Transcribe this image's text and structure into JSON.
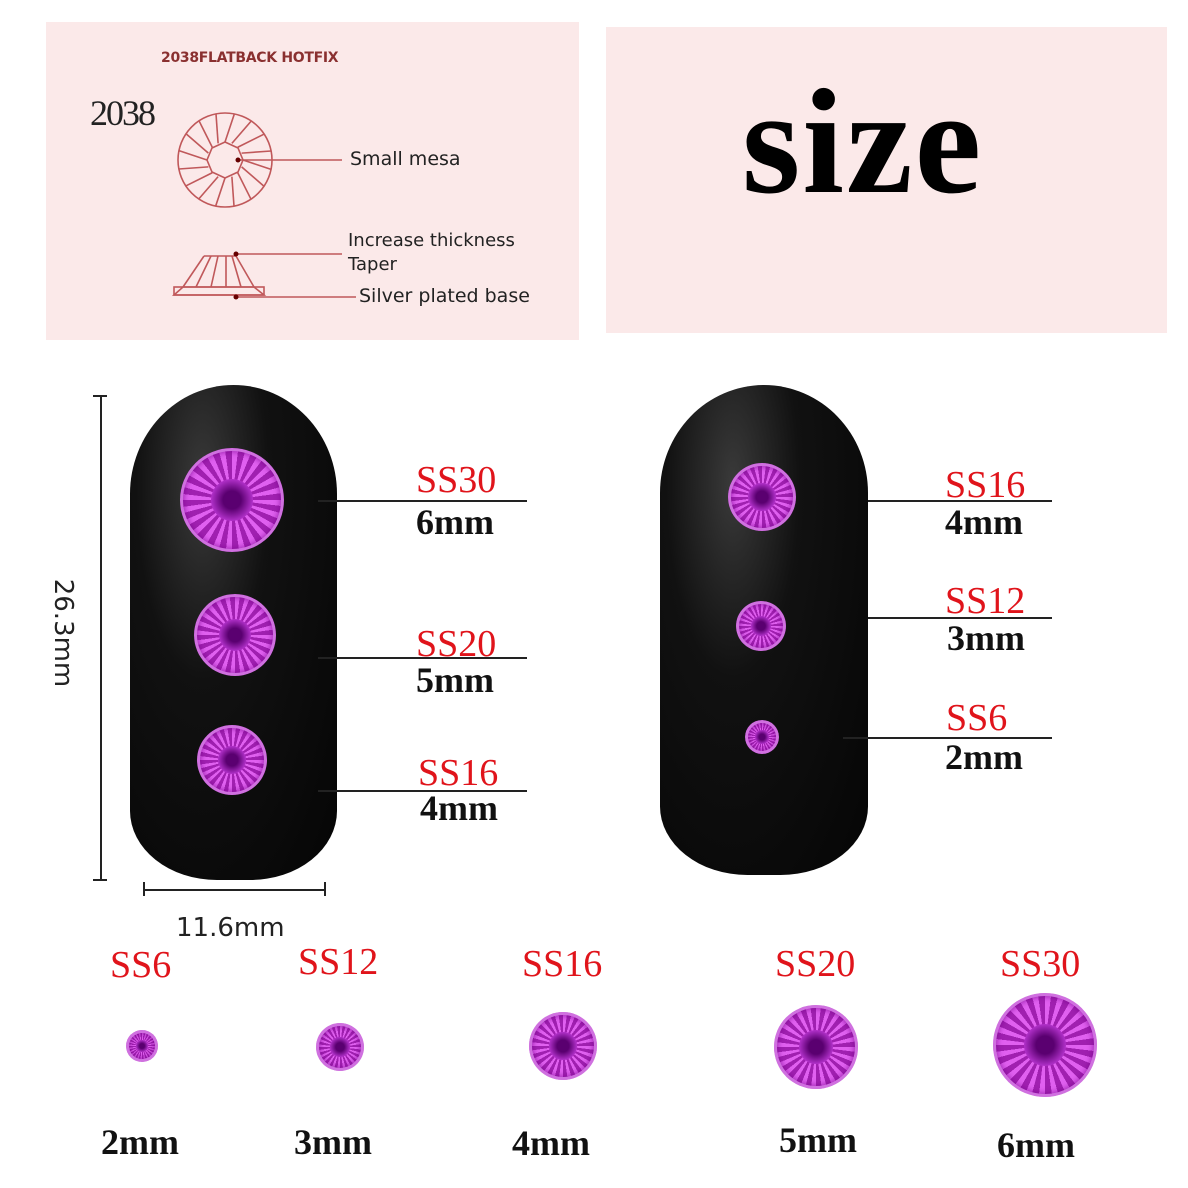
{
  "diagram_panel": {
    "title": "2038FLATBACK HOTFIX",
    "model": "2038",
    "labels": [
      "Small mesa",
      "Increase thickness",
      "Taper",
      "Silver plated base"
    ]
  },
  "size_panel": {
    "title": "size"
  },
  "dimensions": {
    "height": "26.3mm",
    "width": "11.6mm"
  },
  "left_nail": [
    {
      "code": "SS30",
      "size": "6mm"
    },
    {
      "code": "SS20",
      "size": "5mm"
    },
    {
      "code": "SS16",
      "size": "4mm"
    }
  ],
  "right_nail": [
    {
      "code": "SS16",
      "size": "4mm"
    },
    {
      "code": "SS12",
      "size": "3mm"
    },
    {
      "code": "SS6",
      "size": "2mm"
    }
  ],
  "size_row": [
    {
      "code": "SS6",
      "size": "2mm"
    },
    {
      "code": "SS12",
      "size": "3mm"
    },
    {
      "code": "SS16",
      "size": "4mm"
    },
    {
      "code": "SS20",
      "size": "5mm"
    },
    {
      "code": "SS30",
      "size": "6mm"
    }
  ],
  "colors": {
    "panel": "#fbe9e9",
    "label_red": "#e0141b",
    "gem": "#c040d0",
    "diagram_line": "#c0585a"
  }
}
